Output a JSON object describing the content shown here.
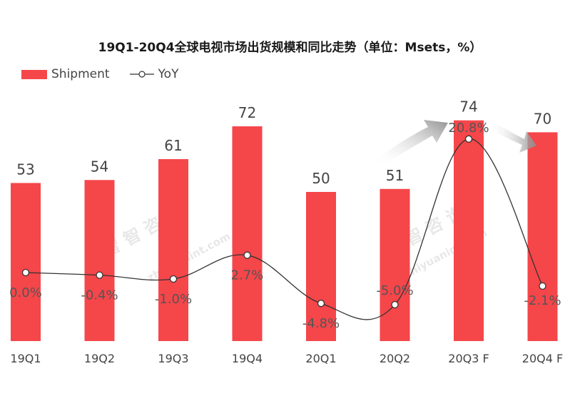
{
  "chart_data": {
    "type": "bar",
    "title": "19Q1-20Q4全球电视市场出货规模和同比走势（单位：Msets，%）",
    "categories": [
      "19Q1",
      "19Q2",
      "19Q3",
      "19Q4",
      "20Q1",
      "20Q2",
      "20Q3 F",
      "20Q4 F"
    ],
    "series": [
      {
        "name": "Shipment",
        "type": "bar",
        "values": [
          53,
          54,
          61,
          72,
          50,
          51,
          74,
          70
        ],
        "labels": [
          "53",
          "54",
          "61",
          "72",
          "50",
          "51",
          "74",
          "70"
        ]
      },
      {
        "name": "YoY",
        "type": "line",
        "values": [
          0.0,
          -0.4,
          -1.0,
          2.7,
          -4.8,
          -5.0,
          20.8,
          -2.1
        ],
        "labels": [
          "0.0%",
          "-0.4%",
          "-1.0%",
          "2.7%",
          "-4.8%",
          "-5.0%",
          "20.8%",
          "-2.1%"
        ]
      }
    ],
    "bar_color": "#f5464a",
    "line_color": "#333333",
    "legend_position": "top-left",
    "grid": false
  },
  "watermarks": [
    "智 智 咨 询",
    "zhiyuanint.com"
  ]
}
